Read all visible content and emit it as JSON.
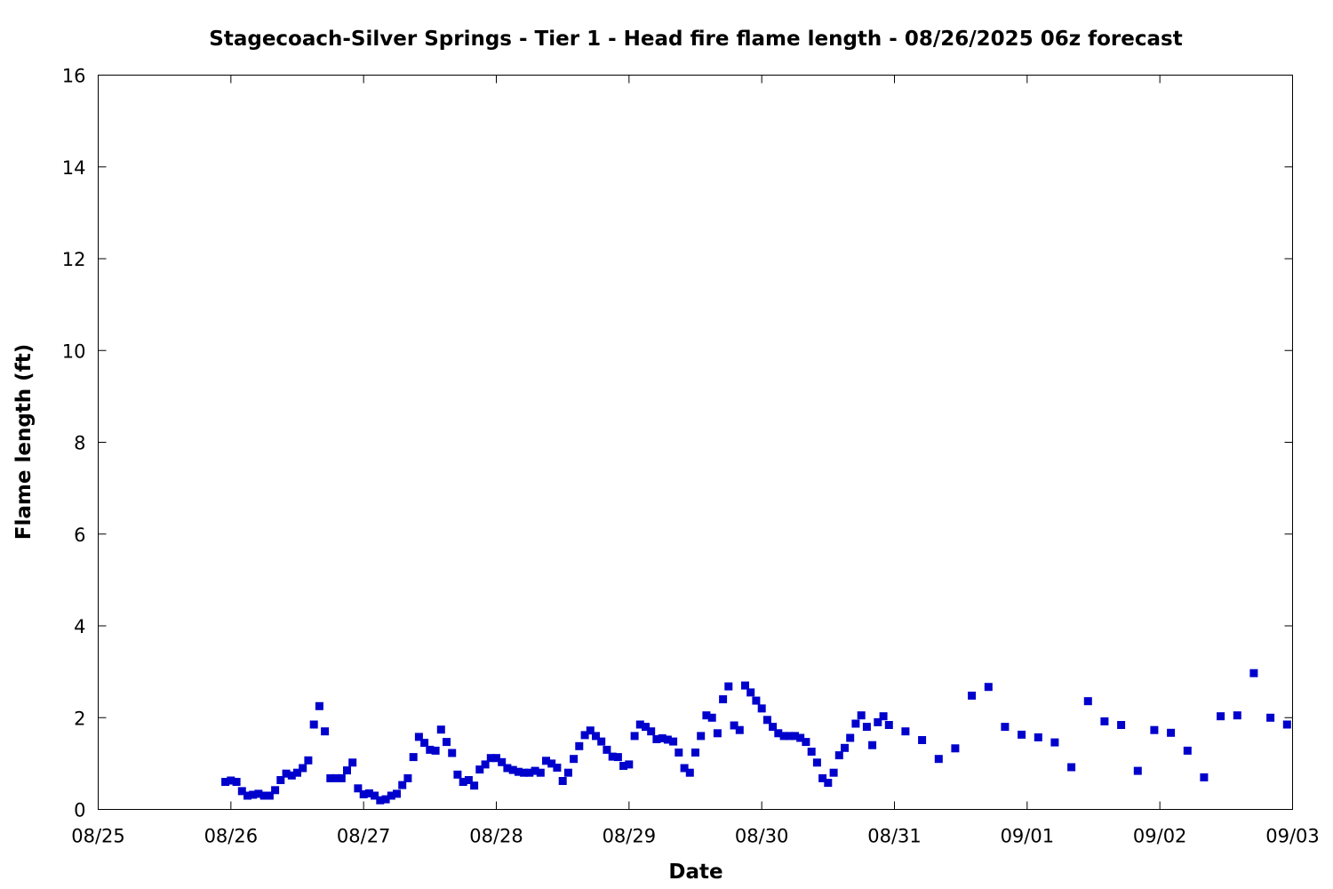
{
  "chart_data": {
    "type": "scatter",
    "title": "Stagecoach-Silver Springs - Tier 1 - Head fire flame length - 08/26/2025 06z forecast",
    "xlabel": "Date",
    "ylabel": "Flame length (ft)",
    "x_axis": "date",
    "xlim": [
      "2025-08-25 00:00",
      "2025-09-03 00:00"
    ],
    "ylim": [
      0,
      16
    ],
    "x_ticks": [
      "08/25",
      "08/26",
      "08/27",
      "08/28",
      "08/29",
      "08/30",
      "08/31",
      "09/01",
      "09/02",
      "09/03"
    ],
    "y_ticks": [
      "0",
      "2",
      "4",
      "6",
      "8",
      "10",
      "12",
      "14",
      "16"
    ],
    "grid": false,
    "legend": "none",
    "marker_color": "#0000cc",
    "series": [
      {
        "points": [
          [
            "2025-08-25 23:00",
            0.6
          ],
          [
            "2025-08-26 00:00",
            0.63
          ],
          [
            "2025-08-26 01:00",
            0.6
          ],
          [
            "2025-08-26 02:00",
            0.4
          ],
          [
            "2025-08-26 03:00",
            0.3
          ],
          [
            "2025-08-26 04:00",
            0.32
          ],
          [
            "2025-08-26 05:00",
            0.34
          ],
          [
            "2025-08-26 06:00",
            0.3
          ],
          [
            "2025-08-26 07:00",
            0.3
          ],
          [
            "2025-08-26 08:00",
            0.42
          ],
          [
            "2025-08-26 09:00",
            0.64
          ],
          [
            "2025-08-26 10:00",
            0.78
          ],
          [
            "2025-08-26 11:00",
            0.74
          ],
          [
            "2025-08-26 12:00",
            0.8
          ],
          [
            "2025-08-26 13:00",
            0.9
          ],
          [
            "2025-08-26 14:00",
            1.07
          ],
          [
            "2025-08-26 15:00",
            1.85
          ],
          [
            "2025-08-26 16:00",
            2.25
          ],
          [
            "2025-08-26 17:00",
            1.7
          ],
          [
            "2025-08-26 18:00",
            0.68
          ],
          [
            "2025-08-26 19:00",
            0.68
          ],
          [
            "2025-08-26 20:00",
            0.68
          ],
          [
            "2025-08-26 21:00",
            0.85
          ],
          [
            "2025-08-26 22:00",
            1.02
          ],
          [
            "2025-08-26 23:00",
            0.46
          ],
          [
            "2025-08-27 00:00",
            0.33
          ],
          [
            "2025-08-27 01:00",
            0.35
          ],
          [
            "2025-08-27 02:00",
            0.3
          ],
          [
            "2025-08-27 03:00",
            0.2
          ],
          [
            "2025-08-27 04:00",
            0.22
          ],
          [
            "2025-08-27 05:00",
            0.3
          ],
          [
            "2025-08-27 06:00",
            0.34
          ],
          [
            "2025-08-27 07:00",
            0.53
          ],
          [
            "2025-08-27 08:00",
            0.68
          ],
          [
            "2025-08-27 09:00",
            1.14
          ],
          [
            "2025-08-27 10:00",
            1.58
          ],
          [
            "2025-08-27 11:00",
            1.45
          ],
          [
            "2025-08-27 12:00",
            1.3
          ],
          [
            "2025-08-27 13:00",
            1.28
          ],
          [
            "2025-08-27 14:00",
            1.74
          ],
          [
            "2025-08-27 15:00",
            1.47
          ],
          [
            "2025-08-27 16:00",
            1.23
          ],
          [
            "2025-08-27 17:00",
            0.76
          ],
          [
            "2025-08-27 18:00",
            0.6
          ],
          [
            "2025-08-27 19:00",
            0.64
          ],
          [
            "2025-08-27 20:00",
            0.52
          ],
          [
            "2025-08-27 21:00",
            0.87
          ],
          [
            "2025-08-27 22:00",
            0.98
          ],
          [
            "2025-08-27 23:00",
            1.12
          ],
          [
            "2025-08-28 00:00",
            1.12
          ],
          [
            "2025-08-28 01:00",
            1.03
          ],
          [
            "2025-08-28 02:00",
            0.9
          ],
          [
            "2025-08-28 03:00",
            0.86
          ],
          [
            "2025-08-28 04:00",
            0.82
          ],
          [
            "2025-08-28 05:00",
            0.8
          ],
          [
            "2025-08-28 06:00",
            0.8
          ],
          [
            "2025-08-28 07:00",
            0.84
          ],
          [
            "2025-08-28 08:00",
            0.8
          ],
          [
            "2025-08-28 09:00",
            1.06
          ],
          [
            "2025-08-28 10:00",
            1.0
          ],
          [
            "2025-08-28 11:00",
            0.91
          ],
          [
            "2025-08-28 12:00",
            0.62
          ],
          [
            "2025-08-28 13:00",
            0.8
          ],
          [
            "2025-08-28 14:00",
            1.1
          ],
          [
            "2025-08-28 15:00",
            1.38
          ],
          [
            "2025-08-28 16:00",
            1.62
          ],
          [
            "2025-08-28 17:00",
            1.72
          ],
          [
            "2025-08-28 18:00",
            1.6
          ],
          [
            "2025-08-28 19:00",
            1.48
          ],
          [
            "2025-08-28 20:00",
            1.3
          ],
          [
            "2025-08-28 21:00",
            1.15
          ],
          [
            "2025-08-28 22:00",
            1.14
          ],
          [
            "2025-08-28 23:00",
            0.95
          ],
          [
            "2025-08-29 00:00",
            0.98
          ],
          [
            "2025-08-29 01:00",
            1.6
          ],
          [
            "2025-08-29 02:00",
            1.85
          ],
          [
            "2025-08-29 03:00",
            1.8
          ],
          [
            "2025-08-29 04:00",
            1.7
          ],
          [
            "2025-08-29 05:00",
            1.53
          ],
          [
            "2025-08-29 06:00",
            1.55
          ],
          [
            "2025-08-29 07:00",
            1.52
          ],
          [
            "2025-08-29 08:00",
            1.48
          ],
          [
            "2025-08-29 09:00",
            1.24
          ],
          [
            "2025-08-29 10:00",
            0.9
          ],
          [
            "2025-08-29 11:00",
            0.8
          ],
          [
            "2025-08-29 12:00",
            1.24
          ],
          [
            "2025-08-29 13:00",
            1.6
          ],
          [
            "2025-08-29 14:00",
            2.05
          ],
          [
            "2025-08-29 15:00",
            2.0
          ],
          [
            "2025-08-29 16:00",
            1.66
          ],
          [
            "2025-08-29 17:00",
            2.4
          ],
          [
            "2025-08-29 18:00",
            2.68
          ],
          [
            "2025-08-29 19:00",
            1.83
          ],
          [
            "2025-08-29 20:00",
            1.73
          ],
          [
            "2025-08-29 21:00",
            2.7
          ],
          [
            "2025-08-29 22:00",
            2.55
          ],
          [
            "2025-08-29 23:00",
            2.37
          ],
          [
            "2025-08-30 00:00",
            2.2
          ],
          [
            "2025-08-30 01:00",
            1.95
          ],
          [
            "2025-08-30 02:00",
            1.8
          ],
          [
            "2025-08-30 03:00",
            1.66
          ],
          [
            "2025-08-30 04:00",
            1.6
          ],
          [
            "2025-08-30 05:00",
            1.6
          ],
          [
            "2025-08-30 06:00",
            1.6
          ],
          [
            "2025-08-30 07:00",
            1.56
          ],
          [
            "2025-08-30 08:00",
            1.47
          ],
          [
            "2025-08-30 09:00",
            1.26
          ],
          [
            "2025-08-30 10:00",
            1.02
          ],
          [
            "2025-08-30 11:00",
            0.68
          ],
          [
            "2025-08-30 12:00",
            0.58
          ],
          [
            "2025-08-30 13:00",
            0.8
          ],
          [
            "2025-08-30 14:00",
            1.18
          ],
          [
            "2025-08-30 15:00",
            1.34
          ],
          [
            "2025-08-30 16:00",
            1.56
          ],
          [
            "2025-08-30 17:00",
            1.87
          ],
          [
            "2025-08-30 18:00",
            2.05
          ],
          [
            "2025-08-30 19:00",
            1.8
          ],
          [
            "2025-08-30 20:00",
            1.4
          ],
          [
            "2025-08-30 21:00",
            1.9
          ],
          [
            "2025-08-30 22:00",
            2.03
          ],
          [
            "2025-08-30 23:00",
            1.84
          ],
          [
            "2025-08-31 02:00",
            1.7
          ],
          [
            "2025-08-31 05:00",
            1.51
          ],
          [
            "2025-08-31 08:00",
            1.1
          ],
          [
            "2025-08-31 11:00",
            1.33
          ],
          [
            "2025-08-31 14:00",
            2.48
          ],
          [
            "2025-08-31 17:00",
            2.67
          ],
          [
            "2025-08-31 20:00",
            1.8
          ],
          [
            "2025-08-31 23:00",
            1.63
          ],
          [
            "2025-09-01 02:00",
            1.57
          ],
          [
            "2025-09-01 05:00",
            1.46
          ],
          [
            "2025-09-01 08:00",
            0.92
          ],
          [
            "2025-09-01 11:00",
            2.36
          ],
          [
            "2025-09-01 14:00",
            1.92
          ],
          [
            "2025-09-01 17:00",
            1.84
          ],
          [
            "2025-09-01 20:00",
            0.84
          ],
          [
            "2025-09-01 23:00",
            1.73
          ],
          [
            "2025-09-02 02:00",
            1.67
          ],
          [
            "2025-09-02 05:00",
            1.28
          ],
          [
            "2025-09-02 08:00",
            0.7
          ],
          [
            "2025-09-02 11:00",
            2.03
          ],
          [
            "2025-09-02 14:00",
            2.05
          ],
          [
            "2025-09-02 17:00",
            2.97
          ],
          [
            "2025-09-02 20:00",
            2.0
          ],
          [
            "2025-09-02 23:00",
            1.85
          ]
        ]
      }
    ]
  }
}
